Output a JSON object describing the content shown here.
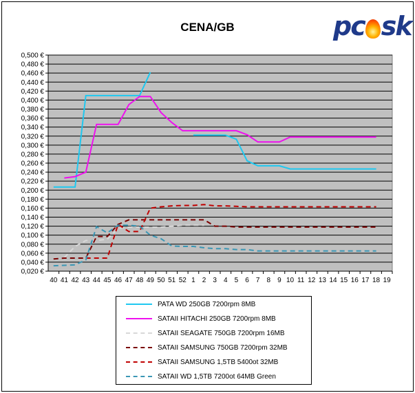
{
  "logo": {
    "text_left": "pc",
    "text_right": "sk",
    "flame_color": "#ff7a00",
    "text_color": "#1f3a8a"
  },
  "chart_data": {
    "type": "line",
    "title": "CENA/GB",
    "xlabel": "",
    "ylabel": "",
    "categories": [
      "40",
      "41",
      "42",
      "43",
      "44",
      "45",
      "46",
      "47",
      "48",
      "49",
      "50",
      "51",
      "52",
      "1",
      "2",
      "3",
      "4",
      "5",
      "6",
      "7",
      "8",
      "9",
      "10",
      "11",
      "12",
      "13",
      "14",
      "15",
      "16",
      "17",
      "18",
      "19"
    ],
    "y_ticks": [
      "0,020 €",
      "0,040 €",
      "0,060 €",
      "0,080 €",
      "0,100 €",
      "0,120 €",
      "0,140 €",
      "0,160 €",
      "0,180 €",
      "0,200 €",
      "0,220 €",
      "0,240 €",
      "0,260 €",
      "0,280 €",
      "0,300 €",
      "0,320 €",
      "0,340 €",
      "0,360 €",
      "0,380 €",
      "0,400 €",
      "0,420 €",
      "0,440 €",
      "0,460 €",
      "0,480 €",
      "0,500 €"
    ],
    "ylim": [
      0.02,
      0.5
    ],
    "grid": true,
    "legend_position": "bottom",
    "series": [
      {
        "name": "PATA WD 250GB 7200rpm 8MB",
        "color": "#1ec8f0",
        "dash": "solid",
        "values": [
          0.207,
          0.207,
          0.207,
          0.41,
          0.41,
          0.41,
          0.41,
          0.41,
          0.41,
          0.462,
          null,
          null,
          null,
          null,
          null,
          null,
          null,
          null,
          null,
          null,
          null,
          null,
          null,
          null,
          null,
          null,
          null,
          null,
          null,
          null,
          null,
          null
        ]
      },
      {
        "name": "PATA WD 250GB 7200rpm 8MB",
        "color": "#1ec8f0",
        "dash": "solid",
        "legend": false,
        "values": [
          null,
          null,
          null,
          null,
          null,
          null,
          null,
          null,
          null,
          null,
          null,
          null,
          null,
          0.322,
          0.322,
          0.322,
          0.322,
          0.313,
          0.265,
          0.254,
          0.254,
          0.254,
          0.247,
          0.247,
          0.247,
          0.247,
          0.247,
          0.247,
          0.247,
          0.247,
          0.247,
          null
        ]
      },
      {
        "name": "SATAII HITACHI 250GB 7200rpm 8MB",
        "color": "#ee10ee",
        "dash": "solid",
        "values": [
          null,
          0.227,
          0.23,
          0.24,
          0.346,
          0.346,
          0.346,
          0.39,
          0.408,
          0.408,
          0.372,
          0.35,
          0.332,
          0.332,
          0.332,
          0.332,
          0.332,
          0.332,
          0.323,
          0.307,
          0.307,
          0.307,
          0.318,
          0.318,
          0.318,
          0.318,
          0.318,
          0.318,
          0.318,
          0.318,
          0.318,
          null
        ]
      },
      {
        "name": "SATAII SEAGATE 750GB 7200rpm 16MB",
        "color": "#d8d8d8",
        "dash": "dash",
        "values": [
          null,
          0.05,
          0.075,
          0.088,
          0.088,
          0.091,
          0.115,
          0.118,
          0.118,
          0.118,
          0.118,
          0.12,
          0.122,
          0.122,
          0.122,
          null,
          null,
          null,
          null,
          null,
          null,
          null,
          null,
          null,
          null,
          null,
          null,
          null,
          null,
          null,
          null,
          null
        ]
      },
      {
        "name": "SATAII SAMSUNG 750GB 7200rpm 32MB",
        "color": "#7a0000",
        "dash": "dash",
        "values": [
          0.047,
          0.049,
          0.049,
          0.049,
          0.097,
          0.097,
          0.124,
          0.134,
          0.134,
          0.134,
          0.134,
          0.134,
          0.134,
          0.134,
          0.134,
          0.12,
          0.12,
          0.118,
          0.118,
          0.118,
          0.118,
          0.118,
          0.118,
          0.118,
          0.118,
          0.118,
          0.118,
          0.118,
          0.118,
          0.118,
          0.118,
          null
        ]
      },
      {
        "name": "SATAII SAMSUNG 1,5TB 5400ot 32MB",
        "color": "#c00000",
        "dash": "dash",
        "values": [
          null,
          null,
          null,
          0.049,
          0.049,
          0.049,
          0.124,
          0.108,
          0.108,
          0.16,
          0.163,
          0.165,
          0.166,
          0.166,
          0.168,
          0.165,
          0.165,
          0.164,
          0.163,
          0.163,
          0.163,
          0.163,
          0.163,
          0.163,
          0.163,
          0.163,
          0.163,
          0.163,
          0.163,
          0.163,
          0.163,
          null
        ]
      },
      {
        "name": "SATAII WD 1,5TB 7200ot 64MB Green",
        "color": "#3a96b4",
        "dash": "dash",
        "values": [
          0.032,
          0.033,
          0.034,
          0.045,
          0.119,
          0.105,
          0.122,
          0.122,
          0.12,
          0.1,
          0.092,
          0.076,
          0.075,
          0.075,
          0.072,
          0.07,
          0.07,
          0.068,
          0.068,
          0.065,
          0.065,
          0.065,
          0.065,
          0.065,
          0.065,
          0.065,
          0.065,
          0.065,
          0.065,
          0.065,
          0.065,
          null
        ]
      }
    ]
  }
}
